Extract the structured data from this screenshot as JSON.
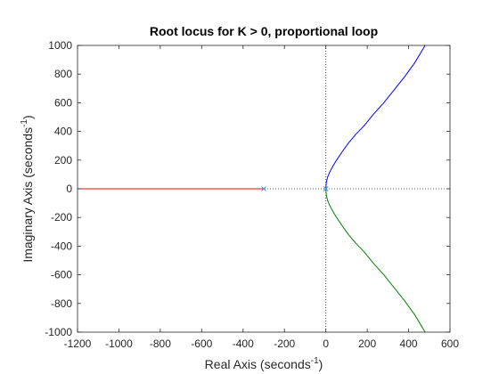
{
  "chart_data": {
    "type": "line",
    "title": "Root locus for K > 0, proportional loop",
    "xlabel": "Real Axis (seconds",
    "xlabel_sup": "-1",
    "xlabel_tail": ")",
    "ylabel": "Imaginary Axis (seconds",
    "ylabel_sup": "-1",
    "ylabel_tail": ")",
    "xlim": [
      -1200,
      600
    ],
    "ylim": [
      -1000,
      1000
    ],
    "xticks": [
      -1200,
      -1000,
      -800,
      -600,
      -400,
      -200,
      0,
      200,
      400,
      600
    ],
    "yticks": [
      -1000,
      -800,
      -600,
      -400,
      -200,
      0,
      200,
      400,
      600,
      800,
      1000
    ],
    "grid": false,
    "poles": [
      {
        "x": -300,
        "y": 0
      },
      {
        "x": 0,
        "y": 0
      },
      {
        "x": 0,
        "y": 0
      }
    ],
    "series": [
      {
        "color": "#ff0000",
        "points": [
          [
            -300,
            0
          ],
          [
            -500,
            0
          ],
          [
            -800,
            0
          ],
          [
            -1000,
            0
          ],
          [
            -1200,
            0
          ]
        ]
      },
      {
        "color": "#0000ff",
        "points": [
          [
            0,
            0
          ],
          [
            2,
            40
          ],
          [
            8,
            80
          ],
          [
            20,
            120
          ],
          [
            35,
            160
          ],
          [
            52,
            200
          ],
          [
            80,
            260
          ],
          [
            110,
            320
          ],
          [
            145,
            380
          ],
          [
            185,
            440
          ],
          [
            230,
            520
          ],
          [
            280,
            600
          ],
          [
            330,
            690
          ],
          [
            380,
            780
          ],
          [
            430,
            880
          ],
          [
            480,
            1000
          ]
        ]
      },
      {
        "color": "#008000",
        "points": [
          [
            0,
            0
          ],
          [
            2,
            -40
          ],
          [
            8,
            -80
          ],
          [
            20,
            -120
          ],
          [
            35,
            -160
          ],
          [
            52,
            -200
          ],
          [
            80,
            -260
          ],
          [
            110,
            -320
          ],
          [
            145,
            -380
          ],
          [
            185,
            -440
          ],
          [
            230,
            -520
          ],
          [
            280,
            -600
          ],
          [
            330,
            -690
          ],
          [
            380,
            -780
          ],
          [
            430,
            -880
          ],
          [
            480,
            -1000
          ]
        ]
      }
    ],
    "pole_marker_color": "#4d9ee0",
    "axis_color": "#262626",
    "box_color": "#262626"
  }
}
